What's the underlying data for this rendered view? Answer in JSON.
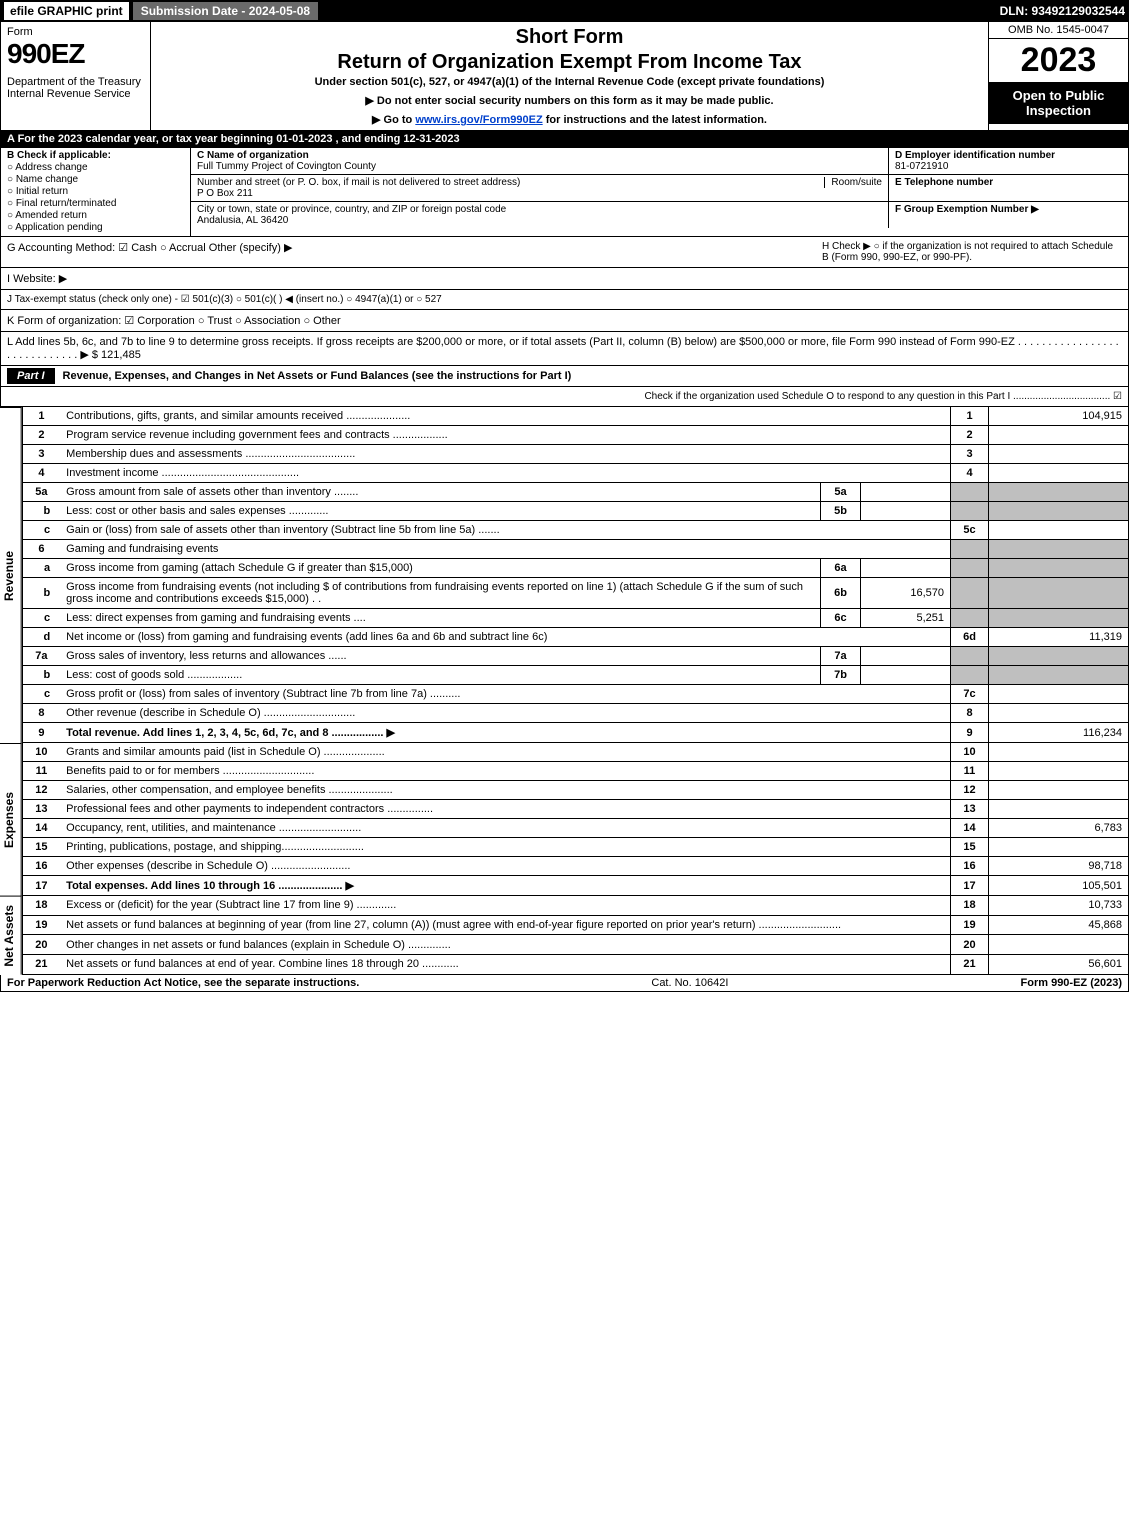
{
  "topbar": {
    "efile": "efile GRAPHIC print",
    "subdate_label": "Submission Date - 2024-05-08",
    "dln": "DLN: 93492129032544"
  },
  "header": {
    "form": "Form",
    "number": "990EZ",
    "dept": "Department of the Treasury\nInternal Revenue Service",
    "short_form": "Short Form",
    "title": "Return of Organization Exempt From Income Tax",
    "under": "Under section 501(c), 527, or 4947(a)(1) of the Internal Revenue Code (except private foundations)",
    "note1": "▶ Do not enter social security numbers on this form as it may be made public.",
    "note2_pre": "▶ Go to ",
    "note2_link": "www.irs.gov/Form990EZ",
    "note2_post": " for instructions and the latest information.",
    "omb": "OMB No. 1545-0047",
    "year": "2023",
    "open": "Open to Public Inspection"
  },
  "A": "A  For the 2023 calendar year, or tax year beginning 01-01-2023 , and ending 12-31-2023",
  "B": {
    "label": "B  Check if applicable:",
    "opts": [
      "Address change",
      "Name change",
      "Initial return",
      "Final return/terminated",
      "Amended return",
      "Application pending"
    ]
  },
  "C": {
    "name_label": "C Name of organization",
    "name": "Full Tummy Project of Covington County",
    "street_label": "Number and street (or P. O. box, if mail is not delivered to street address)",
    "street": "P O Box 211",
    "room_label": "Room/suite",
    "city_label": "City or town, state or province, country, and ZIP or foreign postal code",
    "city": "Andalusia, AL  36420"
  },
  "D": {
    "ein_label": "D Employer identification number",
    "ein": "81-0721910",
    "tel_label": "E Telephone number",
    "grp_label": "F Group Exemption Number   ▶"
  },
  "G": "G Accounting Method:   ☑ Cash  ○ Accrual   Other (specify) ▶",
  "H": "H   Check ▶  ○  if the organization is not required to attach Schedule B (Form 990, 990-EZ, or 990-PF).",
  "I": "I Website: ▶",
  "J": "J Tax-exempt status (check only one) -  ☑ 501(c)(3)  ○  501(c)(  ) ◀ (insert no.)  ○  4947(a)(1) or  ○  527",
  "K": "K Form of organization:   ☑ Corporation  ○ Trust  ○ Association  ○ Other",
  "L": {
    "text": "L Add lines 5b, 6c, and 7b to line 9 to determine gross receipts. If gross receipts are $200,000 or more, or if total assets (Part II, column (B) below) are $500,000 or more, file Form 990 instead of Form 990-EZ  .  .  .  .  .  .  .  .  .  .  .  .  .  .  .  .  .  .  .  .  .  .  .  .  .  .  .  .  .  ▶ $",
    "val": "121,485"
  },
  "part1": {
    "label": "Part I",
    "title": "Revenue, Expenses, and Changes in Net Assets or Fund Balances (see the instructions for Part I)",
    "check": "Check if the organization used Schedule O to respond to any question in this Part I ...................................  ☑"
  },
  "revenue": {
    "label": "Revenue",
    "rows": [
      {
        "ln": "1",
        "desc": "Contributions, gifts, grants, and similar amounts received .....................",
        "num": "1",
        "val": "104,915"
      },
      {
        "ln": "2",
        "desc": "Program service revenue including government fees and contracts ..................",
        "num": "2",
        "val": ""
      },
      {
        "ln": "3",
        "desc": "Membership dues and assessments ....................................",
        "num": "3",
        "val": ""
      },
      {
        "ln": "4",
        "desc": "Investment income .............................................",
        "num": "4",
        "val": ""
      },
      {
        "ln": "5a",
        "desc": "Gross amount from sale of assets other than inventory ........",
        "mid": "5a",
        "midval": "",
        "grey": true
      },
      {
        "ln": "b",
        "desc": "Less: cost or other basis and sales expenses .............",
        "mid": "5b",
        "midval": "",
        "grey": true
      },
      {
        "ln": "c",
        "desc": "Gain or (loss) from sale of assets other than inventory (Subtract line 5b from line 5a) .......",
        "num": "5c",
        "val": ""
      },
      {
        "ln": "6",
        "desc": "Gaming and fundraising events",
        "grey": true
      },
      {
        "ln": "a",
        "desc": "Gross income from gaming (attach Schedule G if greater than $15,000)",
        "mid": "6a",
        "midval": "",
        "grey": true
      },
      {
        "ln": "b",
        "desc": "Gross income from fundraising events (not including $                           of contributions from fundraising events reported on line 1) (attach Schedule G if the sum of such gross income and contributions exceeds $15,000)   .  .",
        "mid": "6b",
        "midval": "16,570",
        "grey": true
      },
      {
        "ln": "c",
        "desc": "Less: direct expenses from gaming and fundraising events  ....",
        "mid": "6c",
        "midval": "5,251",
        "grey": true
      },
      {
        "ln": "d",
        "desc": "Net income or (loss) from gaming and fundraising events (add lines 6a and 6b and subtract line 6c)",
        "num": "6d",
        "val": "11,319"
      },
      {
        "ln": "7a",
        "desc": "Gross sales of inventory, less returns and allowances ......",
        "mid": "7a",
        "midval": "",
        "grey": true
      },
      {
        "ln": "b",
        "desc": "Less: cost of goods sold        ..................",
        "mid": "7b",
        "midval": "",
        "grey": true
      },
      {
        "ln": "c",
        "desc": "Gross profit or (loss) from sales of inventory (Subtract line 7b from line 7a) ..........",
        "num": "7c",
        "val": ""
      },
      {
        "ln": "8",
        "desc": "Other revenue (describe in Schedule O) ..............................",
        "num": "8",
        "val": ""
      },
      {
        "ln": "9",
        "desc": "Total revenue. Add lines 1, 2, 3, 4, 5c, 6d, 7c, and 8  .................  ▶",
        "num": "9",
        "val": "116,234",
        "bold": true
      }
    ]
  },
  "expenses": {
    "label": "Expenses",
    "rows": [
      {
        "ln": "10",
        "desc": "Grants and similar amounts paid (list in Schedule O) ....................",
        "num": "10",
        "val": ""
      },
      {
        "ln": "11",
        "desc": "Benefits paid to or for members      ..............................",
        "num": "11",
        "val": ""
      },
      {
        "ln": "12",
        "desc": "Salaries, other compensation, and employee benefits .....................",
        "num": "12",
        "val": ""
      },
      {
        "ln": "13",
        "desc": "Professional fees and other payments to independent contractors ...............",
        "num": "13",
        "val": ""
      },
      {
        "ln": "14",
        "desc": "Occupancy, rent, utilities, and maintenance ...........................",
        "num": "14",
        "val": "6,783"
      },
      {
        "ln": "15",
        "desc": "Printing, publications, postage, and shipping...........................",
        "num": "15",
        "val": ""
      },
      {
        "ln": "16",
        "desc": "Other expenses (describe in Schedule O)     ..........................",
        "num": "16",
        "val": "98,718"
      },
      {
        "ln": "17",
        "desc": "Total expenses. Add lines 10 through 16     .....................  ▶",
        "num": "17",
        "val": "105,501",
        "bold": true
      }
    ]
  },
  "netassets": {
    "label": "Net Assets",
    "rows": [
      {
        "ln": "18",
        "desc": "Excess or (deficit) for the year (Subtract line 17 from line 9)        .............",
        "num": "18",
        "val": "10,733"
      },
      {
        "ln": "19",
        "desc": "Net assets or fund balances at beginning of year (from line 27, column (A)) (must agree with end-of-year figure reported on prior year's return) ...........................",
        "num": "19",
        "val": "45,868"
      },
      {
        "ln": "20",
        "desc": "Other changes in net assets or fund balances (explain in Schedule O) ..............",
        "num": "20",
        "val": ""
      },
      {
        "ln": "21",
        "desc": "Net assets or fund balances at end of year. Combine lines 18 through 20 ............",
        "num": "21",
        "val": "56,601"
      }
    ]
  },
  "footer": {
    "left": "For Paperwork Reduction Act Notice, see the separate instructions.",
    "center": "Cat. No. 10642I",
    "right": "Form 990-EZ (2023)"
  },
  "colors": {
    "black": "#000000",
    "grey": "#bfbfbf",
    "white": "#ffffff",
    "link": "#0040cc",
    "topbar_mid": "#6a6a6a"
  }
}
